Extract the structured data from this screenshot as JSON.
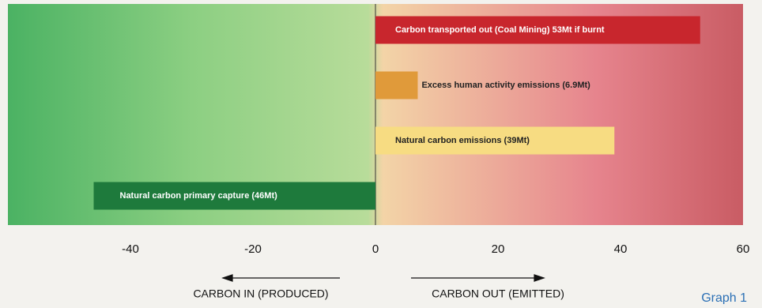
{
  "chart_data": {
    "type": "hbar",
    "categories": [
      "Carbon transported out (Coal Mining) 53Mt if burnt",
      "Excess human activity emissions (6.9Mt)",
      "Natural carbon emissions (39Mt)",
      "Natural carbon primary capture (46Mt)"
    ],
    "values": [
      53,
      6.9,
      39,
      -46
    ],
    "colors": [
      "#c8262d",
      "#e09a3a",
      "#f7dc82",
      "#1e7a3c"
    ],
    "xlim": [
      -60,
      60
    ],
    "xticks": [
      -40,
      -20,
      0,
      20,
      40,
      60
    ],
    "x_label_left": "CARBON IN (PRODUCED)",
    "x_label_right": "CARBON OUT (EMITTED)",
    "caption": "Graph 1"
  }
}
